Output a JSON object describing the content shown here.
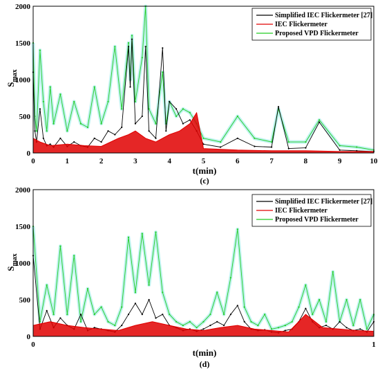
{
  "figure": {
    "charts": [
      {
        "caption": "(c)",
        "xlabel": "t(min)",
        "ylabel_main": "S",
        "ylabel_sub": "max",
        "xlim": [
          0,
          10
        ],
        "ylim": [
          0,
          2000
        ],
        "xticks": [
          "0",
          "1",
          "2",
          "3",
          "4",
          "5",
          "6",
          "7",
          "8",
          "9",
          "10"
        ],
        "yticks": [
          "0",
          "500",
          "1000",
          "1500",
          "2000"
        ],
        "legend": [
          "Simplified IEC Flickermeter [27]",
          "IEC Flickermeter",
          "Proposed VPD Flickermeter"
        ]
      },
      {
        "caption": "(d)",
        "xlabel": "t(min)",
        "ylabel_main": "S",
        "ylabel_sub": "max",
        "xlim": [
          0,
          1
        ],
        "ylim": [
          0,
          2000
        ],
        "xticks": [
          "0",
          "1"
        ],
        "yticks": [
          "0",
          "500",
          "1000",
          "1500",
          "2000"
        ],
        "legend": [
          "Simplified IEC Flickermeter [27]",
          "IEC Flickermeter",
          "Proposed VPD Flickermeter"
        ]
      }
    ]
  },
  "colors": {
    "simplified": "#000000",
    "iec": "#e00000",
    "vpd": "#22cc22",
    "vpd_glow": "#bff3ef"
  },
  "chart_data": [
    {
      "type": "line",
      "x_unit": "min",
      "xlim": [
        0,
        10
      ],
      "ylim": [
        0,
        2000
      ],
      "legend_position": "top-right",
      "series": [
        {
          "name": "Simplified IEC Flickermeter [27]",
          "x": [
            0,
            0.05,
            0.1,
            0.2,
            0.3,
            0.4,
            0.5,
            0.6,
            0.8,
            1.0,
            1.2,
            1.4,
            1.6,
            1.8,
            2.0,
            2.2,
            2.4,
            2.6,
            2.8,
            2.85,
            2.9,
            3.0,
            3.2,
            3.3,
            3.4,
            3.6,
            3.8,
            3.9,
            4.0,
            4.2,
            4.4,
            4.6,
            4.8,
            5.0,
            5.5,
            6.0,
            6.5,
            7.0,
            7.2,
            7.5,
            8.0,
            8.4,
            9.0,
            9.5,
            10.0
          ],
          "y": [
            1100,
            300,
            150,
            600,
            200,
            100,
            120,
            80,
            200,
            90,
            150,
            100,
            80,
            200,
            150,
            300,
            250,
            350,
            1450,
            900,
            1550,
            400,
            500,
            1450,
            300,
            200,
            1430,
            300,
            700,
            600,
            400,
            450,
            300,
            120,
            80,
            200,
            90,
            80,
            630,
            60,
            70,
            420,
            40,
            30,
            20
          ]
        },
        {
          "name": "IEC Flickermeter",
          "x": [
            0,
            0.2,
            0.5,
            1.0,
            1.5,
            2.0,
            2.5,
            2.8,
            3.0,
            3.3,
            3.6,
            4.0,
            4.3,
            4.6,
            4.8,
            5.0,
            6.0,
            7.0,
            8.0,
            9.0,
            10.0
          ],
          "y": [
            200,
            150,
            100,
            120,
            100,
            90,
            200,
            250,
            300,
            200,
            150,
            250,
            300,
            400,
            550,
            60,
            40,
            30,
            30,
            20,
            20
          ]
        },
        {
          "name": "Proposed VPD Flickermeter",
          "x": [
            0,
            0.05,
            0.1,
            0.2,
            0.3,
            0.4,
            0.5,
            0.6,
            0.8,
            1.0,
            1.2,
            1.4,
            1.6,
            1.8,
            2.0,
            2.2,
            2.4,
            2.6,
            2.8,
            2.85,
            2.9,
            3.0,
            3.2,
            3.3,
            3.4,
            3.6,
            3.8,
            3.9,
            4.0,
            4.2,
            4.4,
            4.6,
            4.8,
            5.0,
            5.5,
            6.0,
            6.5,
            7.0,
            7.2,
            7.5,
            8.0,
            8.4,
            9.0,
            9.5,
            10.0
          ],
          "y": [
            1500,
            500,
            300,
            1400,
            700,
            300,
            900,
            400,
            800,
            300,
            700,
            400,
            350,
            900,
            400,
            700,
            1450,
            600,
            1500,
            1000,
            1600,
            700,
            1300,
            2000,
            600,
            400,
            1100,
            400,
            700,
            500,
            600,
            550,
            400,
            200,
            150,
            500,
            200,
            150,
            600,
            150,
            150,
            450,
            100,
            80,
            40
          ]
        }
      ]
    },
    {
      "type": "line",
      "x_unit": "min",
      "xlim": [
        0,
        1
      ],
      "ylim": [
        0,
        2000
      ],
      "legend_position": "top-right",
      "series": [
        {
          "name": "Simplified IEC Flickermeter [27]",
          "x": [
            0,
            0.02,
            0.04,
            0.06,
            0.08,
            0.1,
            0.12,
            0.14,
            0.16,
            0.18,
            0.2,
            0.22,
            0.24,
            0.26,
            0.28,
            0.3,
            0.32,
            0.34,
            0.36,
            0.38,
            0.4,
            0.42,
            0.44,
            0.46,
            0.48,
            0.5,
            0.52,
            0.54,
            0.56,
            0.58,
            0.6,
            0.62,
            0.64,
            0.66,
            0.68,
            0.7,
            0.72,
            0.74,
            0.76,
            0.78,
            0.8,
            0.82,
            0.84,
            0.86,
            0.88,
            0.9,
            0.92,
            0.94,
            0.96,
            0.98,
            1.0
          ],
          "y": [
            1100,
            100,
            350,
            120,
            250,
            150,
            100,
            300,
            80,
            120,
            100,
            80,
            60,
            150,
            300,
            450,
            300,
            500,
            250,
            300,
            150,
            120,
            80,
            100,
            70,
            100,
            150,
            200,
            150,
            300,
            420,
            200,
            100,
            80,
            90,
            60,
            50,
            80,
            100,
            200,
            380,
            200,
            120,
            150,
            100,
            200,
            120,
            80,
            100,
            60,
            200
          ]
        },
        {
          "name": "IEC Flickermeter",
          "x": [
            0,
            0.05,
            0.1,
            0.15,
            0.2,
            0.25,
            0.3,
            0.35,
            0.4,
            0.45,
            0.5,
            0.55,
            0.6,
            0.65,
            0.7,
            0.75,
            0.8,
            0.85,
            0.9,
            0.95,
            1.0
          ],
          "y": [
            150,
            200,
            150,
            120,
            100,
            80,
            150,
            200,
            150,
            100,
            80,
            120,
            150,
            100,
            80,
            60,
            300,
            120,
            100,
            80,
            70
          ]
        },
        {
          "name": "Proposed VPD Flickermeter",
          "x": [
            0,
            0.02,
            0.04,
            0.06,
            0.08,
            0.1,
            0.12,
            0.14,
            0.16,
            0.18,
            0.2,
            0.22,
            0.24,
            0.26,
            0.28,
            0.3,
            0.32,
            0.34,
            0.36,
            0.38,
            0.4,
            0.42,
            0.44,
            0.46,
            0.48,
            0.5,
            0.52,
            0.54,
            0.56,
            0.58,
            0.6,
            0.62,
            0.64,
            0.66,
            0.68,
            0.7,
            0.72,
            0.74,
            0.76,
            0.78,
            0.8,
            0.82,
            0.84,
            0.86,
            0.88,
            0.9,
            0.92,
            0.94,
            0.96,
            0.98,
            1.0
          ],
          "y": [
            1500,
            200,
            700,
            300,
            1230,
            300,
            1100,
            200,
            650,
            300,
            400,
            200,
            150,
            400,
            1350,
            600,
            1400,
            700,
            1420,
            600,
            300,
            200,
            150,
            200,
            120,
            200,
            300,
            600,
            300,
            800,
            1460,
            400,
            200,
            150,
            300,
            100,
            120,
            150,
            200,
            400,
            700,
            300,
            500,
            200,
            880,
            200,
            500,
            150,
            500,
            100,
            300
          ]
        }
      ]
    }
  ]
}
